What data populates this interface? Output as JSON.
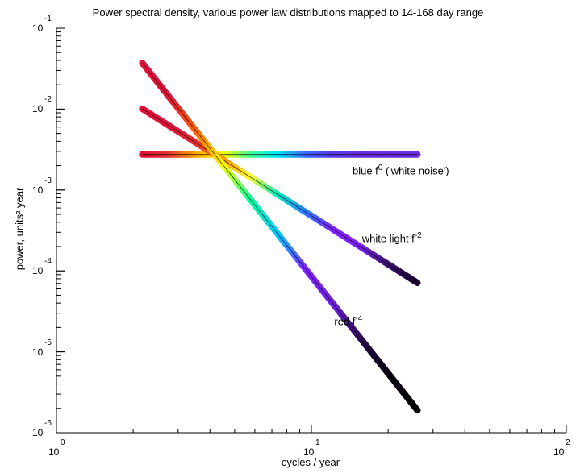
{
  "chart_data": {
    "type": "line",
    "title": "Power spectral density, various power law distributions mapped to 14-168 day range",
    "xlabel": "cycles / year",
    "ylabel": "power, units² year",
    "x_scale": "log",
    "y_scale": "log",
    "xlim": [
      1,
      100
    ],
    "ylim": [
      1e-06,
      0.1
    ],
    "grid": false,
    "x_ticks": [
      {
        "base": "10",
        "exp": "0"
      },
      {
        "base": "10",
        "exp": "1"
      },
      {
        "base": "10",
        "exp": "2"
      }
    ],
    "y_ticks": [
      {
        "base": "10",
        "exp": "-1"
      },
      {
        "base": "10",
        "exp": "-2"
      },
      {
        "base": "10",
        "exp": "-3"
      },
      {
        "base": "10",
        "exp": "-4"
      },
      {
        "base": "10",
        "exp": "-5"
      },
      {
        "base": "10",
        "exp": "-6"
      }
    ],
    "x": [
      2.17,
      26.07
    ],
    "series": [
      {
        "name": "blue",
        "exponent": "0",
        "annotation_suffix": " ('white noise')",
        "slope": 0,
        "values": [
          0.00275,
          0.00275
        ]
      },
      {
        "name": "white light",
        "exponent": "-2",
        "annotation_suffix": "",
        "slope": -1,
        "values": [
          0.0101,
          7.12e-05
        ]
      },
      {
        "name": "red",
        "exponent": "-4",
        "annotation_suffix": "",
        "slope": -2,
        "values": [
          0.0372,
          1.89e-06
        ]
      }
    ],
    "colors": {
      "gradient": [
        "#e0103a",
        "#e02030",
        "#ff8800",
        "#ffff00",
        "#00ff88",
        "#00e8ff",
        "#4060ff",
        "#6a30e8",
        "#7f20ff",
        "#1a0040",
        "#000000"
      ]
    }
  }
}
